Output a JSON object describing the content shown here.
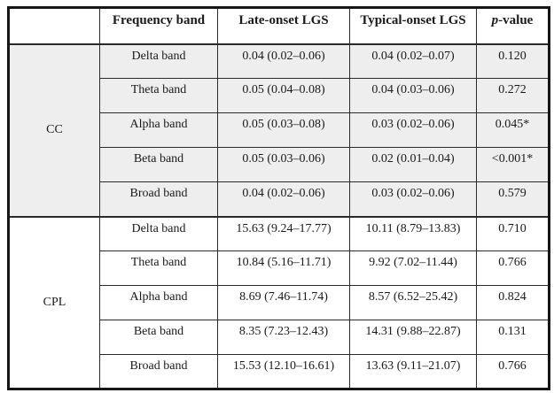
{
  "table": {
    "columns": {
      "group": "",
      "band": "Frequency band",
      "late": "Late-onset LGS",
      "typical": "Typical-onset LGS",
      "p_italic": "p",
      "p_rest": "-value"
    },
    "groups": [
      {
        "label": "CC",
        "rows": [
          {
            "band": "Delta band",
            "late": "0.04 (0.02–0.06)",
            "typical": "0.04 (0.02–0.07)",
            "p": "0.120"
          },
          {
            "band": "Theta band",
            "late": "0.05 (0.04–0.08)",
            "typical": "0.04 (0.03–0.06)",
            "p": "0.272"
          },
          {
            "band": "Alpha band",
            "late": "0.05 (0.03–0.08)",
            "typical": "0.03 (0.02–0.06)",
            "p": "0.045*"
          },
          {
            "band": "Beta band",
            "late": "0.05 (0.03–0.06)",
            "typical": "0.02 (0.01–0.04)",
            "p": "<0.001*"
          },
          {
            "band": "Broad band",
            "late": "0.04 (0.02–0.06)",
            "typical": "0.03 (0.02–0.06)",
            "p": "0.579"
          }
        ]
      },
      {
        "label": "CPL",
        "rows": [
          {
            "band": "Delta band",
            "late": "15.63 (9.24–17.77)",
            "typical": "10.11 (8.79–13.83)",
            "p": "0.710"
          },
          {
            "band": "Theta band",
            "late": "10.84 (5.16–11.71)",
            "typical": "9.92 (7.02–11.44)",
            "p": "0.766"
          },
          {
            "band": "Alpha band",
            "late": "8.69 (7.46–11.74)",
            "typical": "8.57 (6.52–25.42)",
            "p": "0.824"
          },
          {
            "band": "Beta band",
            "late": "8.35 (7.23–12.43)",
            "typical": "14.31 (9.88–22.87)",
            "p": "0.131"
          },
          {
            "band": "Broad band",
            "late": "15.53 (12.10–16.61)",
            "typical": "13.63 (9.11–21.07)",
            "p": "0.766"
          }
        ]
      }
    ]
  },
  "colors": {
    "cc_section_bg": "#eeeeee",
    "cpl_section_bg": "#ffffff",
    "border": "#161616",
    "text": "#1a1a1a"
  }
}
